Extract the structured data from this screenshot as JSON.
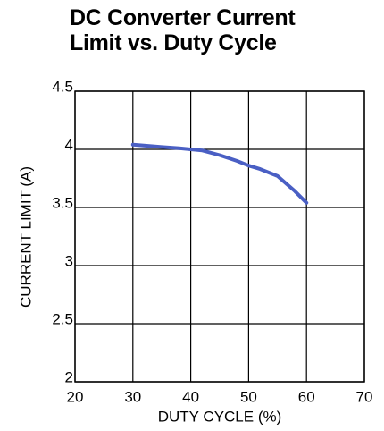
{
  "chart_data": {
    "type": "line",
    "title": "DC Converter Current Limit vs. Duty Cycle",
    "x_label": "DUTY CYCLE (%)",
    "y_label": "CURRENT LIMIT (A)",
    "x": [
      30,
      35,
      38,
      40,
      42,
      45,
      48,
      50,
      52,
      55,
      58,
      60
    ],
    "series": [
      {
        "name": "Current Limit",
        "color": "#4a5fc4",
        "values": [
          4.04,
          4.02,
          4.01,
          4.0,
          3.99,
          3.95,
          3.9,
          3.86,
          3.83,
          3.77,
          3.64,
          3.54
        ]
      }
    ],
    "xlim": [
      20,
      70
    ],
    "xticks": [
      20,
      30,
      40,
      50,
      60,
      70
    ],
    "ylim": [
      2,
      4.5
    ],
    "yticks": [
      2,
      2.5,
      3,
      3.5,
      4,
      4.5
    ],
    "grid": true
  }
}
